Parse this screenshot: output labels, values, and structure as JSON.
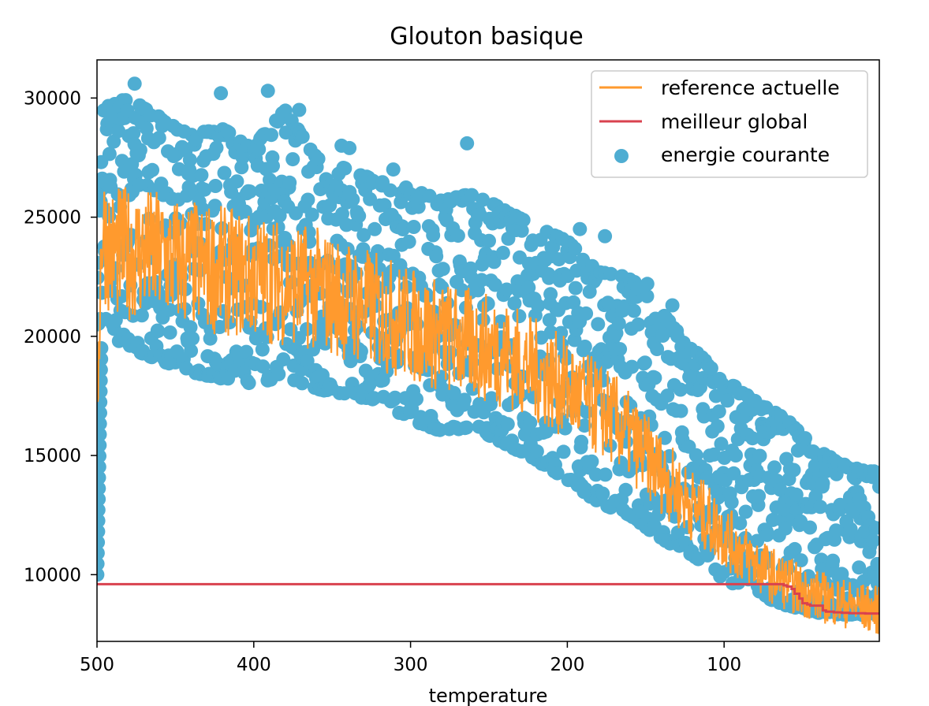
{
  "chart_data": {
    "type": "scatter",
    "title": "Glouton basique",
    "xlabel": "temperature",
    "ylabel": "",
    "xlim": [
      500,
      1
    ],
    "ylim": [
      7200,
      31600
    ],
    "x_ticks": [
      500,
      400,
      300,
      200,
      100
    ],
    "x_tick_labels": [
      "500",
      "400",
      "300",
      "200",
      "100"
    ],
    "y_ticks": [
      10000,
      15000,
      20000,
      25000,
      30000
    ],
    "y_tick_labels": [
      "10000",
      "15000",
      "20000",
      "25000",
      "30000"
    ],
    "grid": false,
    "legend_position": "top-right",
    "series": [
      {
        "name": "reference actuelle",
        "kind": "line",
        "color": "#ff9a2e",
        "profile": {
          "x": [
            500,
            497,
            490,
            470,
            440,
            400,
            360,
            320,
            280,
            240,
            200,
            170,
            150,
            130,
            110,
            90,
            70,
            50,
            30,
            10,
            1
          ],
          "y": [
            17000,
            24500,
            23500,
            23500,
            23000,
            22500,
            22000,
            21000,
            20000,
            19300,
            17800,
            16500,
            15000,
            13500,
            12300,
            11000,
            10000,
            9300,
            8900,
            8600,
            8500
          ]
        }
      },
      {
        "name": "meilleur global",
        "kind": "line",
        "color": "#d9424f",
        "x": [
          500,
          66,
          62,
          60,
          57,
          55,
          52,
          50,
          47,
          45,
          40,
          37,
          35,
          30,
          25,
          20,
          10,
          1
        ],
        "y": [
          9600,
          9600,
          9550,
          9500,
          9400,
          9200,
          9000,
          8800,
          8750,
          8700,
          8700,
          8500,
          8450,
          8420,
          8400,
          8380,
          8370,
          8360
        ]
      },
      {
        "name": "energie courante",
        "kind": "scatter",
        "color": "#4fadd2",
        "envelope": {
          "x": [
            500,
            480,
            460,
            440,
            420,
            400,
            380,
            360,
            340,
            320,
            300,
            280,
            260,
            240,
            220,
            200,
            180,
            160,
            140,
            120,
            100,
            80,
            60,
            40,
            20,
            1
          ],
          "upper": [
            29500,
            30000,
            29200,
            28500,
            28700,
            28000,
            29500,
            27500,
            27000,
            26500,
            26200,
            25700,
            26000,
            25300,
            24600,
            24000,
            22700,
            22500,
            21000,
            19500,
            18200,
            17300,
            16500,
            15200,
            14500,
            14300
          ],
          "lower": [
            20500,
            19500,
            19000,
            18500,
            18200,
            18000,
            18300,
            17800,
            17500,
            17300,
            16500,
            16000,
            16200,
            15500,
            14800,
            14000,
            13000,
            12500,
            11500,
            10800,
            9800,
            9200,
            8700,
            8400,
            8300,
            8300
          ]
        },
        "outliers": {
          "x": [
            476,
            391,
            421,
            264,
            344,
            339,
            371,
            311,
            192,
            176,
            149,
            133
          ],
          "y": [
            30600,
            30300,
            30200,
            28100,
            28000,
            27900,
            29500,
            27000,
            24500,
            24200,
            22200,
            21300
          ]
        }
      }
    ]
  }
}
